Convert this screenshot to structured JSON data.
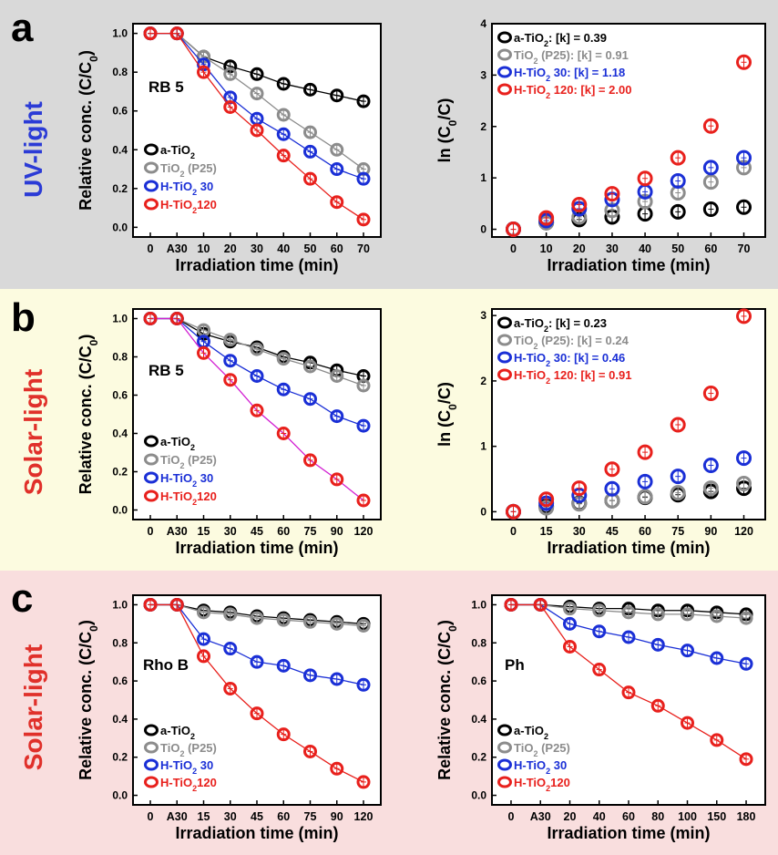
{
  "bands": [
    {
      "letter": "a",
      "side_label": "UV-light",
      "side_color": "#2b3bd6",
      "bg": "#d9d9d9"
    },
    {
      "letter": "b",
      "side_label": "Solar-light",
      "side_color": "#e0302a",
      "bg": "#fcfbe0"
    },
    {
      "letter": "c",
      "side_label": "Solar-light",
      "side_color": "#e0302a",
      "bg": "#f9dede"
    }
  ],
  "colors": {
    "black": "#000000",
    "gray": "#8c8c8c",
    "blue": "#1a2fd6",
    "red": "#e8201c",
    "magenta": "#d21fd2"
  },
  "chart_data": [
    {
      "id": "a-left",
      "type": "line",
      "title": "",
      "annotation": "RB 5",
      "xlabel": "Irradiation time (min)",
      "ylabel": "Relative conc. (C/C0)",
      "categories": [
        "0",
        "A30",
        "10",
        "20",
        "30",
        "40",
        "50",
        "60",
        "70"
      ],
      "ylim": [
        -0.05,
        1.05
      ],
      "yticks": [
        0.0,
        0.2,
        0.4,
        0.6,
        0.8,
        1.0
      ],
      "legend_position": "bottom-left",
      "series": [
        {
          "name": "a-TiO2",
          "color": "#000000",
          "values": [
            1.0,
            1.0,
            0.88,
            0.83,
            0.79,
            0.74,
            0.71,
            0.68,
            0.65
          ]
        },
        {
          "name": "TiO2 (P25)",
          "color": "#8c8c8c",
          "values": [
            1.0,
            1.0,
            0.88,
            0.79,
            0.69,
            0.58,
            0.49,
            0.4,
            0.3
          ]
        },
        {
          "name": "H-TiO2 30",
          "color": "#1a2fd6",
          "values": [
            1.0,
            1.0,
            0.84,
            0.67,
            0.56,
            0.48,
            0.39,
            0.3,
            0.25
          ]
        },
        {
          "name": "H-TiO2120",
          "color": "#e8201c",
          "values": [
            1.0,
            1.0,
            0.8,
            0.62,
            0.5,
            0.37,
            0.25,
            0.13,
            0.04
          ]
        }
      ]
    },
    {
      "id": "a-right",
      "type": "scatter",
      "title": "",
      "xlabel": "Irradiation time (min)",
      "ylabel": "ln (C0/C)",
      "categories": [
        "0",
        "10",
        "20",
        "30",
        "40",
        "50",
        "60",
        "70"
      ],
      "ylim": [
        -0.15,
        4.0
      ],
      "yticks": [
        0,
        1,
        2,
        3,
        4
      ],
      "legend_position": "top-left",
      "series": [
        {
          "name": "a-TiO2: [k] = 0.39",
          "color": "#000000",
          "values": [
            0,
            0.13,
            0.19,
            0.24,
            0.3,
            0.34,
            0.39,
            0.43
          ]
        },
        {
          "name": "TiO2 (P25): [k] = 0.91",
          "color": "#8c8c8c",
          "values": [
            0,
            0.13,
            0.24,
            0.37,
            0.54,
            0.71,
            0.92,
            1.2
          ]
        },
        {
          "name": "H-TiO2 30: [k] = 1.18",
          "color": "#1a2fd6",
          "values": [
            0,
            0.17,
            0.4,
            0.58,
            0.73,
            0.94,
            1.2,
            1.39
          ]
        },
        {
          "name": "H-TiO2 120: [k] = 2.00",
          "color": "#e8201c",
          "values": [
            0,
            0.22,
            0.48,
            0.69,
            0.99,
            1.39,
            2.01,
            3.25
          ]
        }
      ]
    },
    {
      "id": "b-left",
      "type": "line",
      "title": "",
      "annotation": "RB 5",
      "xlabel": "Irradiation time (min)",
      "ylabel": "Relative conc. (C/C0)",
      "categories": [
        "0",
        "A30",
        "15",
        "30",
        "45",
        "60",
        "75",
        "90",
        "120"
      ],
      "ylim": [
        -0.05,
        1.05
      ],
      "yticks": [
        0.0,
        0.2,
        0.4,
        0.6,
        0.8,
        1.0
      ],
      "legend_position": "bottom-left",
      "series": [
        {
          "name": "a-TiO2",
          "color": "#000000",
          "values": [
            1.0,
            1.0,
            0.92,
            0.88,
            0.85,
            0.8,
            0.77,
            0.73,
            0.7
          ]
        },
        {
          "name": "TiO2 (P25)",
          "color": "#8c8c8c",
          "values": [
            1.0,
            1.0,
            0.94,
            0.89,
            0.84,
            0.79,
            0.75,
            0.7,
            0.65
          ]
        },
        {
          "name": "H-TiO2 30",
          "color": "#1a2fd6",
          "values": [
            1.0,
            1.0,
            0.88,
            0.78,
            0.7,
            0.63,
            0.58,
            0.49,
            0.44
          ]
        },
        {
          "name": "H-TiO2120",
          "color": "#e8201c",
          "line_color": "#d21fd2",
          "values": [
            1.0,
            1.0,
            0.82,
            0.68,
            0.52,
            0.4,
            0.26,
            0.16,
            0.05
          ]
        }
      ]
    },
    {
      "id": "b-right",
      "type": "scatter",
      "title": "",
      "xlabel": "Irradiation time (min)",
      "ylabel": "ln (C0/C)",
      "categories": [
        "0",
        "15",
        "30",
        "45",
        "60",
        "75",
        "90",
        "120"
      ],
      "ylim": [
        -0.12,
        3.1
      ],
      "yticks": [
        0,
        1,
        2,
        3
      ],
      "legend_position": "top-left",
      "series": [
        {
          "name": "a-TiO2: [k] = 0.23",
          "color": "#000000",
          "values": [
            0,
            0.08,
            0.13,
            0.17,
            0.22,
            0.26,
            0.31,
            0.36
          ]
        },
        {
          "name": "TiO2 (P25): [k] = 0.24",
          "color": "#8c8c8c",
          "values": [
            0,
            0.06,
            0.12,
            0.17,
            0.23,
            0.29,
            0.36,
            0.43
          ]
        },
        {
          "name": "H-TiO2 30: [k] = 0.46",
          "color": "#1a2fd6",
          "values": [
            0,
            0.13,
            0.25,
            0.35,
            0.46,
            0.54,
            0.71,
            0.82
          ]
        },
        {
          "name": "H-TiO2 120: [k] = 0.91",
          "color": "#e8201c",
          "values": [
            0,
            0.19,
            0.36,
            0.65,
            0.91,
            1.33,
            1.81,
            2.99
          ]
        }
      ]
    },
    {
      "id": "c-left",
      "type": "line",
      "title": "",
      "annotation": "Rho B",
      "xlabel": "Irradiation time (min)",
      "ylabel": "Relative conc. (C/C0)",
      "categories": [
        "0",
        "A30",
        "15",
        "30",
        "45",
        "60",
        "75",
        "90",
        "120"
      ],
      "ylim": [
        -0.05,
        1.05
      ],
      "yticks": [
        0.0,
        0.2,
        0.4,
        0.6,
        0.8,
        1.0
      ],
      "legend_position": "bottom-left",
      "series": [
        {
          "name": "a-TiO2",
          "color": "#000000",
          "values": [
            1.0,
            1.0,
            0.97,
            0.96,
            0.94,
            0.93,
            0.92,
            0.91,
            0.9
          ]
        },
        {
          "name": "TiO2 (P25)",
          "color": "#8c8c8c",
          "values": [
            1.0,
            1.0,
            0.96,
            0.95,
            0.93,
            0.92,
            0.91,
            0.9,
            0.89
          ]
        },
        {
          "name": "H-TiO2 30",
          "color": "#1a2fd6",
          "values": [
            1.0,
            1.0,
            0.82,
            0.77,
            0.7,
            0.68,
            0.63,
            0.61,
            0.58
          ]
        },
        {
          "name": "H-TiO2120",
          "color": "#e8201c",
          "values": [
            1.0,
            1.0,
            0.73,
            0.56,
            0.43,
            0.32,
            0.23,
            0.14,
            0.07
          ]
        }
      ]
    },
    {
      "id": "c-right",
      "type": "line",
      "title": "",
      "annotation": "Ph",
      "xlabel": "Irradiation time (min)",
      "ylabel": "Relative conc. (C/C0)",
      "categories": [
        "0",
        "A30",
        "20",
        "40",
        "60",
        "80",
        "100",
        "150",
        "180"
      ],
      "ylim": [
        -0.05,
        1.05
      ],
      "yticks": [
        0.0,
        0.2,
        0.4,
        0.6,
        0.8,
        1.0
      ],
      "legend_position": "bottom-left",
      "series": [
        {
          "name": "a-TiO2",
          "color": "#000000",
          "values": [
            1.0,
            1.0,
            0.99,
            0.98,
            0.98,
            0.97,
            0.97,
            0.96,
            0.95
          ]
        },
        {
          "name": "TiO2 (P25)",
          "color": "#8c8c8c",
          "values": [
            1.0,
            1.0,
            0.98,
            0.97,
            0.96,
            0.95,
            0.95,
            0.94,
            0.93
          ]
        },
        {
          "name": "H-TiO2 30",
          "color": "#1a2fd6",
          "values": [
            1.0,
            1.0,
            0.9,
            0.86,
            0.83,
            0.79,
            0.76,
            0.72,
            0.69
          ]
        },
        {
          "name": "H-TiO2120",
          "color": "#e8201c",
          "values": [
            1.0,
            1.0,
            0.78,
            0.66,
            0.54,
            0.47,
            0.38,
            0.29,
            0.19
          ]
        }
      ]
    }
  ]
}
